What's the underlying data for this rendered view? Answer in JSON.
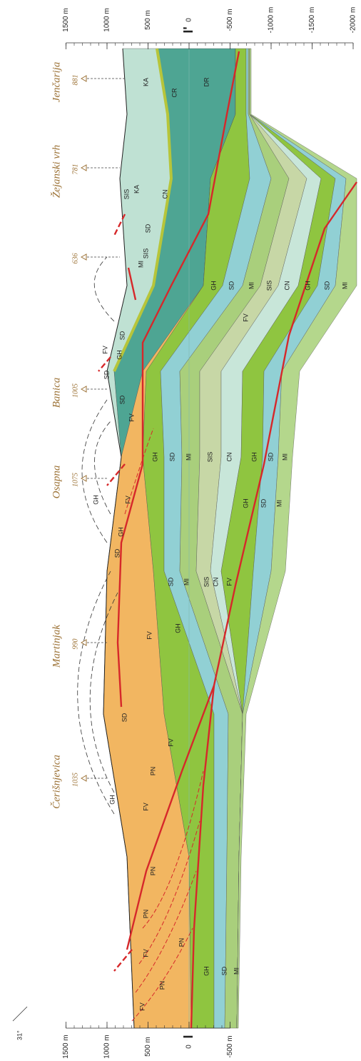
{
  "section": {
    "start": "I",
    "end": "I'",
    "dip": "31°"
  },
  "scale_top": [
    {
      "value": 1500,
      "label": "1500 m"
    },
    {
      "value": 1000,
      "label": "1000 m"
    },
    {
      "value": 500,
      "label": "500 m"
    },
    0,
    {
      "value": -500,
      "label": "-500 m"
    },
    {
      "value": -1000,
      "label": "-1000 m"
    },
    {
      "value": -1500,
      "label": "-1500 m"
    },
    {
      "value": -2000,
      "label": "-2000 m"
    }
  ],
  "scale_bottom": [
    {
      "value": 1500,
      "label": "1500 m"
    },
    {
      "value": 1000,
      "label": "1000 m"
    },
    {
      "value": 500,
      "label": "500 m"
    },
    0,
    {
      "value": -500,
      "label": "-500 m"
    }
  ],
  "peaks": [
    {
      "name": "Čerišnjevica",
      "elevation": 1035
    },
    {
      "name": "Martinjak",
      "elevation": 990
    },
    {
      "name": "Osapna",
      "elevation": 1075
    },
    {
      "name": "Banica",
      "elevation": 1005
    },
    {
      "elevation": 636
    },
    {
      "name": "Žejanski vrh",
      "elevation": 781
    },
    {
      "name": "Jenčarija",
      "elevation": 881
    }
  ],
  "units": [
    "FV",
    "PN",
    "FV",
    "PN",
    "PN",
    "PN",
    "GH",
    "SD",
    "MI",
    "FV",
    "GH",
    "PN",
    "FV",
    "SD",
    "FV",
    "GH",
    "SD",
    "MI",
    "SIS",
    "CN",
    "FV",
    "SD",
    "GH",
    "GH",
    "FV",
    "GH",
    "SD",
    "MI",
    "SD",
    "FV",
    "SD",
    "FV",
    "GH",
    "SD",
    "FV",
    "GH",
    "SD",
    "MI",
    "SIS",
    "CN",
    "GH",
    "SD",
    "MI",
    "MI",
    "SIS",
    "SD",
    "KA",
    "GH",
    "SD",
    "MI",
    "SIS",
    "CN",
    "GH",
    "SD",
    "MI",
    "SIS",
    "CN",
    "KA",
    "CR",
    "DR"
  ]
}
